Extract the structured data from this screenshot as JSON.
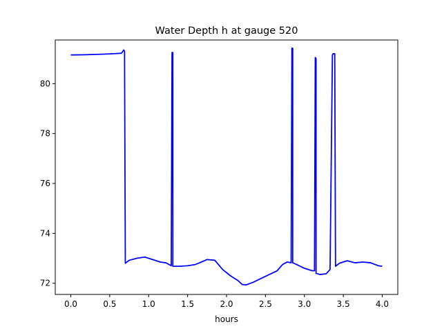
{
  "chart_data": {
    "type": "line",
    "title": "Water Depth h at gauge 520",
    "xlabel": "hours",
    "ylabel": "",
    "xlim": [
      -0.2,
      4.2
    ],
    "ylim": [
      71.55,
      81.75
    ],
    "xticks": [
      0.0,
      0.5,
      1.0,
      1.5,
      2.0,
      2.5,
      3.0,
      3.5,
      4.0
    ],
    "xtick_labels": [
      "0.0",
      "0.5",
      "1.0",
      "1.5",
      "2.0",
      "2.5",
      "3.0",
      "3.5",
      "4.0"
    ],
    "yticks": [
      72,
      74,
      76,
      78,
      80
    ],
    "ytick_labels": [
      "72",
      "74",
      "76",
      "78",
      "80"
    ],
    "grid": false,
    "line_color": "#0000ff",
    "series": [
      {
        "x": [
          0.0,
          0.2,
          0.4,
          0.55,
          0.65,
          0.68,
          0.69,
          0.7,
          0.75,
          0.85,
          0.95,
          1.05,
          1.15,
          1.22,
          1.28,
          1.29,
          1.3,
          1.31,
          1.31,
          1.32,
          1.33,
          1.4,
          1.5,
          1.6,
          1.7,
          1.75,
          1.85,
          1.95,
          2.05,
          2.15,
          2.2,
          2.25,
          2.35,
          2.45,
          2.55,
          2.65,
          2.72,
          2.78,
          2.83,
          2.84,
          2.85,
          2.85,
          2.9,
          3.0,
          3.1,
          3.13,
          3.14,
          3.15,
          3.15,
          3.2,
          3.28,
          3.33,
          3.36,
          3.37,
          3.39,
          3.4,
          3.4,
          3.45,
          3.55,
          3.65,
          3.75,
          3.85,
          3.95,
          4.0
        ],
        "y": [
          81.15,
          81.16,
          81.18,
          81.2,
          81.22,
          81.35,
          81.3,
          72.8,
          72.92,
          73.0,
          73.05,
          72.95,
          72.85,
          72.82,
          72.72,
          72.7,
          81.25,
          81.25,
          72.68,
          72.68,
          72.68,
          72.68,
          72.7,
          72.75,
          72.88,
          72.95,
          72.92,
          72.55,
          72.3,
          72.1,
          71.95,
          71.93,
          72.05,
          72.2,
          72.35,
          72.5,
          72.75,
          72.85,
          72.82,
          81.42,
          81.42,
          72.82,
          72.75,
          72.6,
          72.5,
          72.5,
          81.05,
          81.0,
          72.4,
          72.35,
          72.38,
          72.55,
          81.15,
          81.2,
          81.2,
          72.68,
          72.68,
          72.8,
          72.9,
          72.82,
          72.85,
          72.82,
          72.7,
          72.68
        ]
      }
    ]
  }
}
